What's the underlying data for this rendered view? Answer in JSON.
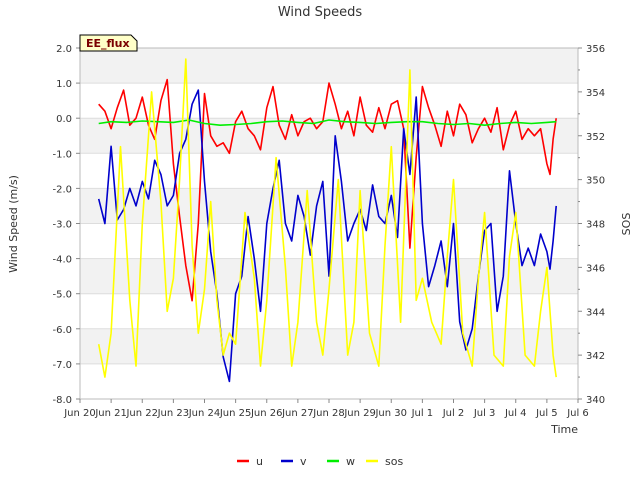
{
  "chart_data": {
    "type": "line",
    "title": "Wind Speeds",
    "badge": "EE_flux",
    "xlabel": "Time",
    "ylabel": "Wind Speed (m/s)",
    "y2label": "SOS",
    "x_range": [
      20,
      36
    ],
    "ylim": [
      -8,
      2
    ],
    "y2lim": [
      340,
      356
    ],
    "yticks": [
      -8,
      -7,
      -6,
      -5,
      -4,
      -3,
      -2,
      -1,
      0,
      1,
      2
    ],
    "yticklabels": [
      "-8.0",
      "-7.0",
      "-6.0",
      "-5.0",
      "-4.0",
      "-3.0",
      "-2.0",
      "-1.0",
      "0.0",
      "1.0",
      "2.0"
    ],
    "y2ticks": [
      340,
      342,
      344,
      346,
      348,
      350,
      352,
      354,
      356
    ],
    "y2ticklabels": [
      "340",
      "342",
      "344",
      "346",
      "348",
      "350",
      "352",
      "354",
      "356"
    ],
    "xticks": [
      20,
      21,
      22,
      23,
      24,
      25,
      26,
      27,
      28,
      29,
      30,
      31,
      32,
      33,
      34,
      35,
      36
    ],
    "xticklabels": [
      "Jun 20",
      "Jun 21",
      "Jun 22",
      "Jun 23",
      "Jun 24",
      "Jun 25",
      "Jun 26",
      "Jun 27",
      "Jun 28",
      "Jun 29",
      "Jun 30",
      "Jul 1",
      "Jul 2",
      "Jul 3",
      "Jul 4",
      "Jul 5",
      "Jul 6"
    ],
    "grid": true,
    "legend_position": "bottom",
    "series": [
      {
        "name": "u",
        "color": "#ff0000",
        "axis": "left",
        "x": [
          20.6,
          20.8,
          21.0,
          21.2,
          21.4,
          21.6,
          21.8,
          22.0,
          22.2,
          22.4,
          22.6,
          22.8,
          23.0,
          23.2,
          23.4,
          23.6,
          23.8,
          24.0,
          24.2,
          24.4,
          24.6,
          24.8,
          25.0,
          25.2,
          25.4,
          25.6,
          25.8,
          26.0,
          26.2,
          26.4,
          26.6,
          26.8,
          27.0,
          27.2,
          27.4,
          27.6,
          27.8,
          28.0,
          28.2,
          28.4,
          28.6,
          28.8,
          29.0,
          29.2,
          29.4,
          29.6,
          29.8,
          30.0,
          30.2,
          30.4,
          30.6,
          30.8,
          31.0,
          31.2,
          31.4,
          31.6,
          31.8,
          32.0,
          32.2,
          32.4,
          32.6,
          32.8,
          33.0,
          33.2,
          33.4,
          33.6,
          33.8,
          34.0,
          34.2,
          34.4,
          34.6,
          34.8,
          35.0,
          35.1,
          35.2,
          35.3
        ],
        "values": [
          0.4,
          0.2,
          -0.3,
          0.3,
          0.8,
          -0.2,
          0.0,
          0.6,
          -0.2,
          -0.6,
          0.5,
          1.1,
          -1.3,
          -2.8,
          -4.2,
          -5.2,
          -3.0,
          0.7,
          -0.5,
          -0.8,
          -0.7,
          -1.0,
          -0.1,
          0.2,
          -0.3,
          -0.5,
          -0.9,
          0.3,
          0.9,
          -0.2,
          -0.6,
          0.1,
          -0.5,
          -0.1,
          0.0,
          -0.3,
          -0.1,
          1.0,
          0.4,
          -0.3,
          0.2,
          -0.5,
          0.6,
          -0.2,
          -0.4,
          0.3,
          -0.3,
          0.4,
          0.5,
          -0.3,
          -3.7,
          -1.1,
          0.9,
          0.3,
          -0.2,
          -0.8,
          0.2,
          -0.5,
          0.4,
          0.1,
          -0.7,
          -0.3,
          0.0,
          -0.4,
          0.3,
          -0.9,
          -0.2,
          0.2,
          -0.6,
          -0.3,
          -0.5,
          -0.3,
          -1.3,
          -1.6,
          -0.6,
          0.0
        ]
      },
      {
        "name": "v",
        "color": "#0000cc",
        "axis": "left",
        "x": [
          20.6,
          20.8,
          21.0,
          21.2,
          21.4,
          21.6,
          21.8,
          22.0,
          22.2,
          22.4,
          22.6,
          22.8,
          23.0,
          23.2,
          23.4,
          23.6,
          23.8,
          24.0,
          24.2,
          24.4,
          24.6,
          24.8,
          25.0,
          25.2,
          25.4,
          25.6,
          25.8,
          26.0,
          26.2,
          26.4,
          26.6,
          26.8,
          27.0,
          27.2,
          27.4,
          27.6,
          27.8,
          28.0,
          28.2,
          28.4,
          28.6,
          28.8,
          29.0,
          29.2,
          29.4,
          29.6,
          29.8,
          30.0,
          30.2,
          30.4,
          30.6,
          30.8,
          31.0,
          31.2,
          31.4,
          31.6,
          31.8,
          32.0,
          32.2,
          32.4,
          32.6,
          32.8,
          33.0,
          33.2,
          33.4,
          33.6,
          33.8,
          34.0,
          34.2,
          34.4,
          34.6,
          34.8,
          35.0,
          35.1,
          35.2,
          35.3
        ],
        "values": [
          -2.3,
          -3.0,
          -0.8,
          -2.9,
          -2.6,
          -2.0,
          -2.5,
          -1.8,
          -2.3,
          -1.2,
          -1.6,
          -2.5,
          -2.2,
          -1.0,
          -0.6,
          0.4,
          0.8,
          -1.8,
          -3.8,
          -5.0,
          -6.8,
          -7.5,
          -5.0,
          -4.5,
          -2.8,
          -4.0,
          -5.5,
          -3.0,
          -2.0,
          -1.2,
          -3.0,
          -3.5,
          -2.2,
          -2.8,
          -3.9,
          -2.5,
          -1.8,
          -4.5,
          -0.5,
          -1.8,
          -3.5,
          -3.0,
          -2.6,
          -3.2,
          -1.9,
          -2.8,
          -3.0,
          -2.2,
          -3.4,
          -0.3,
          -1.6,
          0.6,
          -3.0,
          -4.8,
          -4.2,
          -3.5,
          -4.8,
          -3.0,
          -5.8,
          -6.6,
          -6.0,
          -4.5,
          -3.2,
          -3.0,
          -5.5,
          -4.5,
          -1.5,
          -3.0,
          -4.2,
          -3.7,
          -4.2,
          -3.3,
          -3.8,
          -4.3,
          -3.5,
          -2.5
        ]
      },
      {
        "name": "w",
        "color": "#00ee00",
        "axis": "left",
        "x": [
          20.6,
          21.0,
          21.5,
          22.0,
          22.5,
          23.0,
          23.5,
          24.0,
          24.5,
          25.0,
          25.5,
          26.0,
          26.5,
          27.0,
          27.5,
          28.0,
          28.5,
          29.0,
          29.5,
          30.0,
          30.5,
          31.0,
          31.5,
          32.0,
          32.5,
          33.0,
          33.5,
          34.0,
          34.5,
          35.0,
          35.3
        ],
        "values": [
          -0.15,
          -0.1,
          -0.12,
          -0.08,
          -0.1,
          -0.12,
          -0.05,
          -0.15,
          -0.2,
          -0.18,
          -0.15,
          -0.1,
          -0.08,
          -0.12,
          -0.15,
          -0.05,
          -0.1,
          -0.12,
          -0.15,
          -0.12,
          -0.1,
          -0.1,
          -0.15,
          -0.18,
          -0.15,
          -0.2,
          -0.15,
          -0.12,
          -0.15,
          -0.12,
          -0.1
        ]
      },
      {
        "name": "sos",
        "color": "#ffff00",
        "axis": "right",
        "x": [
          20.6,
          20.8,
          21.0,
          21.3,
          21.6,
          21.8,
          22.0,
          22.3,
          22.6,
          22.8,
          23.0,
          23.2,
          23.4,
          23.6,
          23.8,
          24.0,
          24.2,
          24.4,
          24.6,
          24.8,
          25.0,
          25.3,
          25.6,
          25.8,
          26.0,
          26.3,
          26.6,
          26.8,
          27.0,
          27.3,
          27.6,
          27.8,
          28.0,
          28.3,
          28.6,
          28.8,
          29.0,
          29.3,
          29.6,
          29.8,
          30.0,
          30.3,
          30.6,
          30.8,
          31.0,
          31.3,
          31.6,
          31.8,
          32.0,
          32.3,
          32.6,
          32.8,
          33.0,
          33.3,
          33.6,
          33.8,
          34.0,
          34.3,
          34.6,
          34.8,
          35.0,
          35.2,
          35.3
        ],
        "values": [
          342.5,
          341.0,
          343.0,
          351.5,
          344.5,
          341.5,
          348.0,
          354.0,
          349.0,
          344.0,
          345.5,
          350.0,
          355.5,
          347.0,
          343.0,
          345.0,
          349.0,
          344.5,
          342.0,
          343.0,
          342.5,
          348.5,
          345.5,
          341.5,
          344.5,
          351.0,
          346.0,
          341.5,
          343.5,
          349.5,
          343.5,
          342.0,
          345.0,
          350.0,
          342.0,
          343.5,
          349.5,
          343.0,
          341.5,
          347.0,
          351.5,
          343.5,
          355.0,
          344.5,
          345.5,
          343.5,
          342.5,
          346.5,
          350.0,
          343.0,
          341.5,
          345.5,
          348.5,
          342.0,
          341.5,
          346.5,
          348.5,
          342.0,
          341.5,
          344.0,
          346.0,
          342.0,
          341.0
        ]
      }
    ]
  }
}
